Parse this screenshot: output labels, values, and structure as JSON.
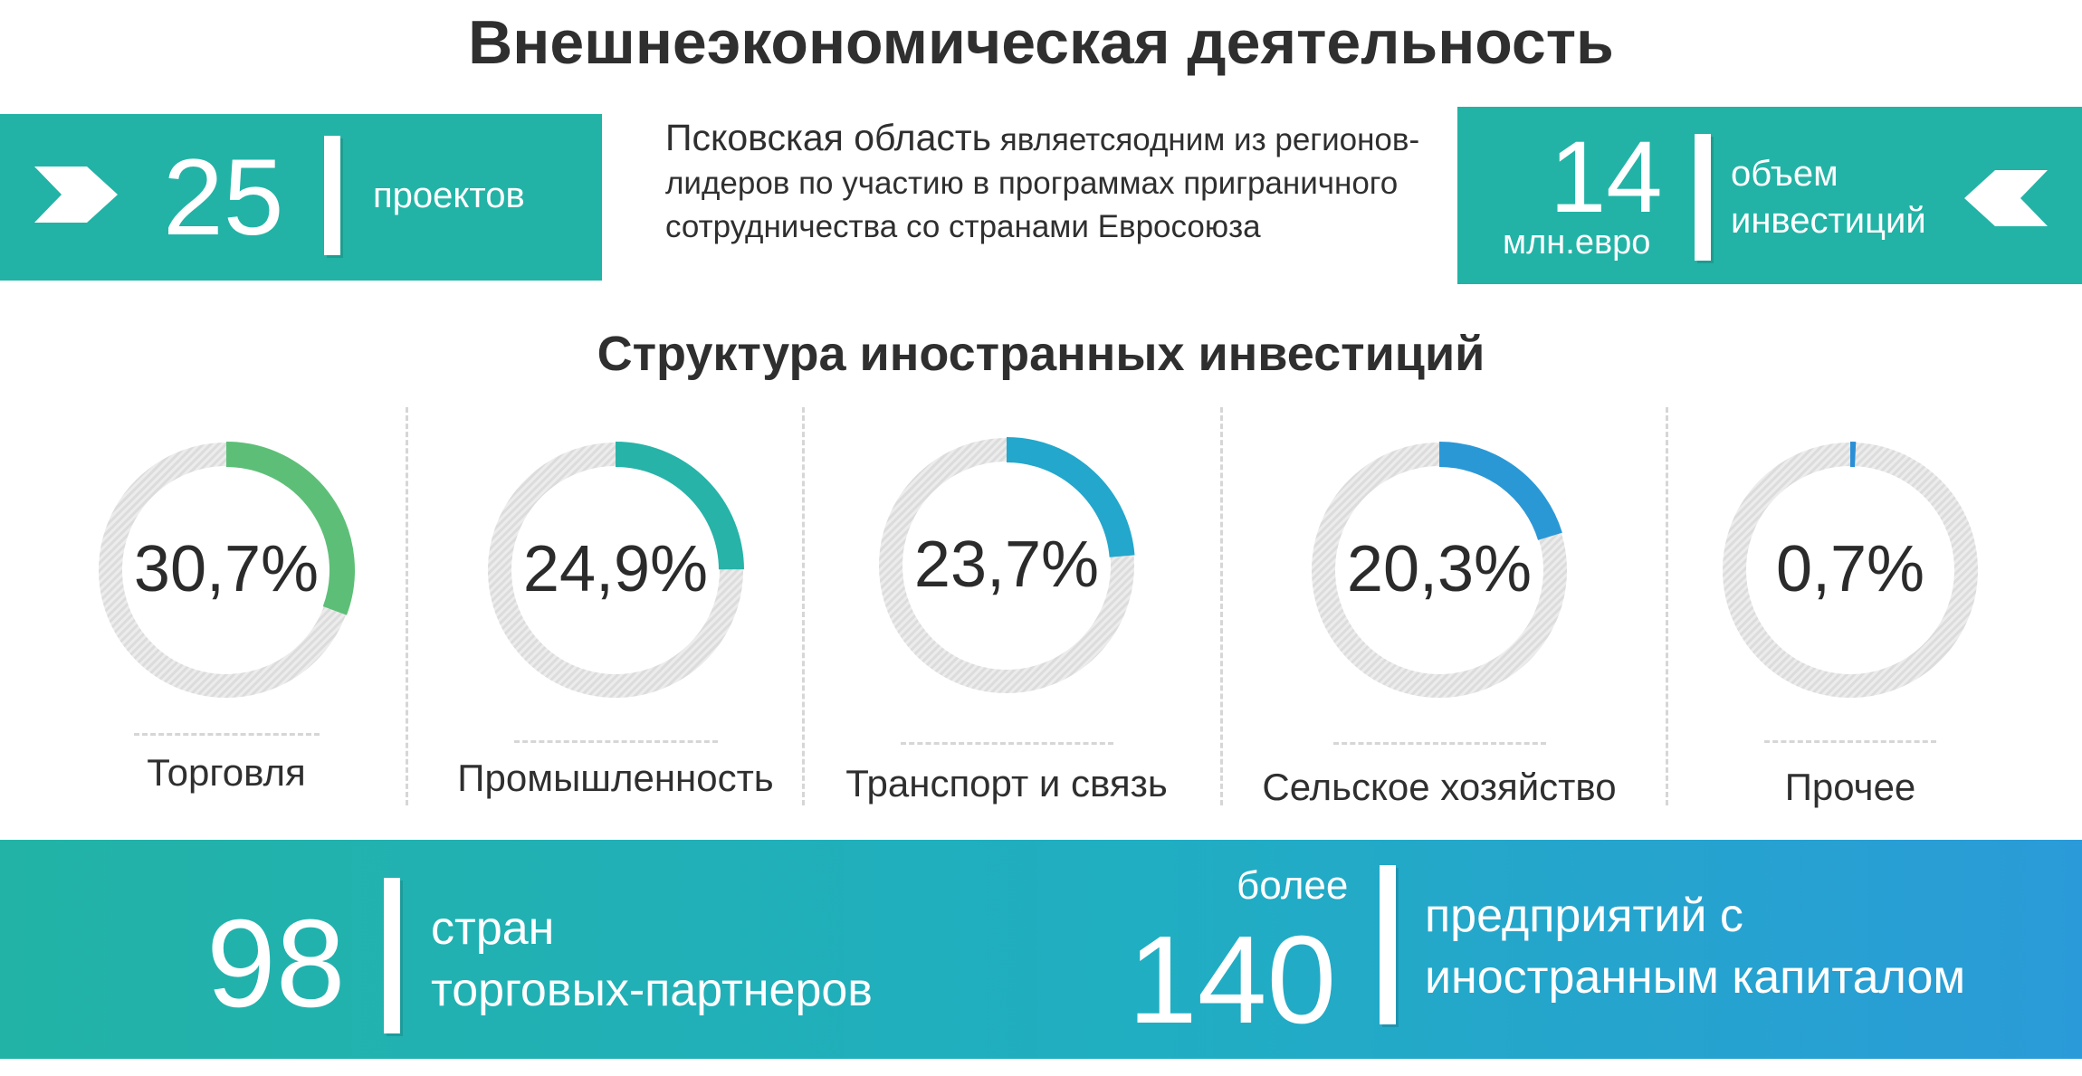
{
  "title": "Внешнеэкономическая деятельность",
  "projects": {
    "number": "25",
    "label": "проектов"
  },
  "intro": {
    "lead": "Псковская область",
    "rest": " являетсяодним из регионов-лидеров по участию в программах приграничного сотрудничества со странами Евросоюза"
  },
  "investment": {
    "number": "14",
    "unit": "млн.евро",
    "label_line1": "объем",
    "label_line2": "инвестиций"
  },
  "subtitle": "Структура иностранных инвестиций",
  "chart_data": {
    "type": "donut",
    "title": "Структура иностранных инвестиций",
    "categories": [
      "Торговля",
      "Промышленность",
      "Транспорт и связь",
      "Сельское хозяйство",
      "Прочее"
    ],
    "values": [
      30.7,
      24.9,
      23.7,
      20.3,
      0.7
    ],
    "labels": [
      "30,7%",
      "24,9%",
      "23,7%",
      "20,3%",
      "0,7%"
    ],
    "colors": [
      "#5dbf77",
      "#27b3a8",
      "#23a7cc",
      "#2b98d6",
      "#2b8fd6"
    ],
    "track_color": "#dcdcdc"
  },
  "countries": {
    "number": "98",
    "label_line1": "стран",
    "label_line2": "торговых-партнеров"
  },
  "enterprises": {
    "prefix": "более",
    "number": "140",
    "label_line1": "предприятий с",
    "label_line2": "иностранным капиталом"
  }
}
